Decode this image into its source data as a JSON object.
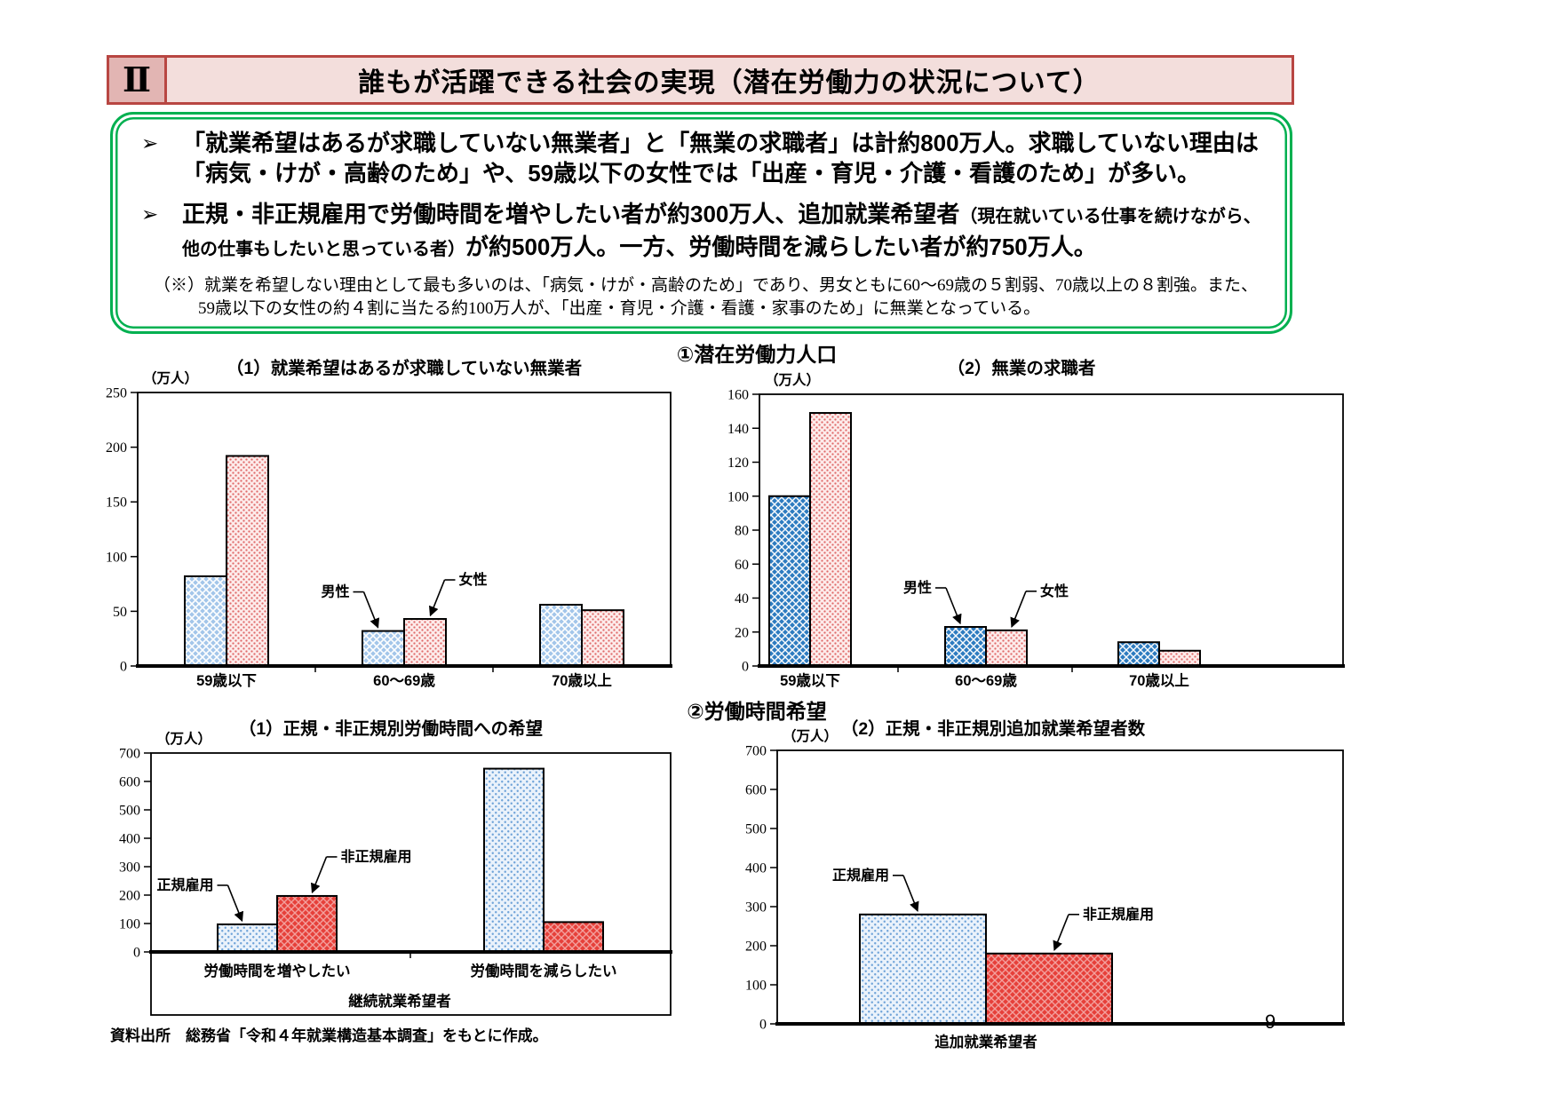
{
  "header": {
    "section_mark": "Ⅱ",
    "title": "誰もが活躍できる社会の実現（潜在労働力の状況について）"
  },
  "summary_box": {
    "bullet_icon": "➢",
    "bullets": [
      {
        "pre": "「就業希望はあるが求職していない無業者」と「無業の求職者」は計約800万人。求職していない理由は「病気・けが・高齢のため」や、59歳以下の女性では「出産・育児・介護・看護のため」が多い。",
        "paren": "",
        "post": ""
      },
      {
        "pre": "正規・非正規雇用で労働時間を増やしたい者が約300万人、追加就業希望者",
        "paren": "（現在就いている仕事を続けながら、他の仕事もしたいと思っている者）",
        "post": "が約500万人。一方、労働時間を減らしたい者が約750万人。"
      }
    ],
    "note_marker": "（※）",
    "note": "就業を希望しない理由として最も多いのは、「病気・けが・高齢のため」であり、男女ともに60～69歳の５割弱、70歳以上の８割強。また、59歳以下の女性の約４割に当たる約100万人が、「出産・育児・介護・看護・家事のため」に無業となっている。"
  },
  "sections": [
    {
      "title": "①潜在労働力人口"
    },
    {
      "title": "②労働時間希望"
    }
  ],
  "footer": {
    "source": "資料出所　総務省「令和４年就業構造基本調査」をもとに作成。",
    "page_number": "9"
  },
  "colors": {
    "header_border": "#b84642",
    "header_mark_fill": "#e2b5b3",
    "header_title_fill": "#f3dedc",
    "summary_border_green": "#00b050",
    "male_light_blue": "#a3c6ea",
    "male_strong_blue": "#2e7cc0",
    "female_pink_dot": "#e06a6a",
    "female_pink_bg": "#fdeceb",
    "seiki_dot_blue": "#6fa3d8",
    "seiki_bg": "#eaf2fb",
    "hiseiki_red": "#e6403a",
    "axis_black": "#000000"
  },
  "chart_data": [
    {
      "id": "potential-not-seeking",
      "type": "bar",
      "title": "（1）就業希望はあるが求職していない無業者",
      "unit": "（万人）",
      "categories": [
        "59歳以下",
        "60～69歳",
        "70歳以上"
      ],
      "series": [
        {
          "name": "男性",
          "values": [
            82,
            32,
            56
          ],
          "style": "blue-light-hatch"
        },
        {
          "name": "女性",
          "values": [
            192,
            43,
            51
          ],
          "style": "pink-dot"
        }
      ],
      "ylim": [
        0,
        250
      ],
      "ystep": 50,
      "grid": false,
      "legend": "arrow-annotations",
      "annotations": [
        {
          "text": "男性",
          "series": 0,
          "category": 1,
          "side": "left"
        },
        {
          "text": "女性",
          "series": 1,
          "category": 1,
          "side": "right"
        }
      ]
    },
    {
      "id": "jobless-seekers",
      "type": "bar",
      "title": "（2）無業の求職者",
      "unit": "（万人）",
      "categories": [
        "59歳以下",
        "60～69歳",
        "70歳以上"
      ],
      "series": [
        {
          "name": "男性",
          "values": [
            100,
            23,
            14
          ],
          "style": "blue-strong-hatch"
        },
        {
          "name": "女性",
          "values": [
            149,
            21,
            9
          ],
          "style": "pink-dot"
        }
      ],
      "ylim": [
        0,
        160
      ],
      "ystep": 20,
      "grid": false,
      "legend": "arrow-annotations",
      "annotations": [
        {
          "text": "男性",
          "series": 0,
          "category": 1,
          "side": "left"
        },
        {
          "text": "女性",
          "series": 1,
          "category": 1,
          "side": "right"
        }
      ]
    },
    {
      "id": "hours-preference",
      "type": "bar",
      "title": "（1）正規・非正規別労働時間への希望",
      "unit": "（万人）",
      "categories": [
        "労働時間を増やしたい",
        "労働時間を減らしたい"
      ],
      "xlabel": "継続就業希望者",
      "series": [
        {
          "name": "正規雇用",
          "values": [
            97,
            645
          ],
          "style": "blue-pale-dot"
        },
        {
          "name": "非正規雇用",
          "values": [
            197,
            105
          ],
          "style": "red-cross"
        }
      ],
      "ylim": [
        0,
        700
      ],
      "ystep": 100,
      "grid": false,
      "legend": "arrow-annotations",
      "annotations": [
        {
          "text": "正規雇用",
          "series": 0,
          "category": 0,
          "side": "left"
        },
        {
          "text": "非正規雇用",
          "series": 1,
          "category": 0,
          "side": "right"
        }
      ]
    },
    {
      "id": "additional-work",
      "type": "bar",
      "title": "（2）正規・非正規別追加就業希望者数",
      "unit": "（万人）",
      "categories": [
        "追加就業希望者"
      ],
      "xlabel": "",
      "series": [
        {
          "name": "正規雇用",
          "values": [
            280
          ],
          "style": "blue-pale-dot"
        },
        {
          "name": "非正規雇用",
          "values": [
            180
          ],
          "style": "red-cross"
        }
      ],
      "ylim": [
        0,
        700
      ],
      "ystep": 100,
      "grid": false,
      "legend": "arrow-annotations",
      "annotations": [
        {
          "text": "正規雇用",
          "series": 0,
          "category": 0,
          "side": "left"
        },
        {
          "text": "非正規雇用",
          "series": 1,
          "category": 0,
          "side": "right"
        }
      ]
    }
  ]
}
